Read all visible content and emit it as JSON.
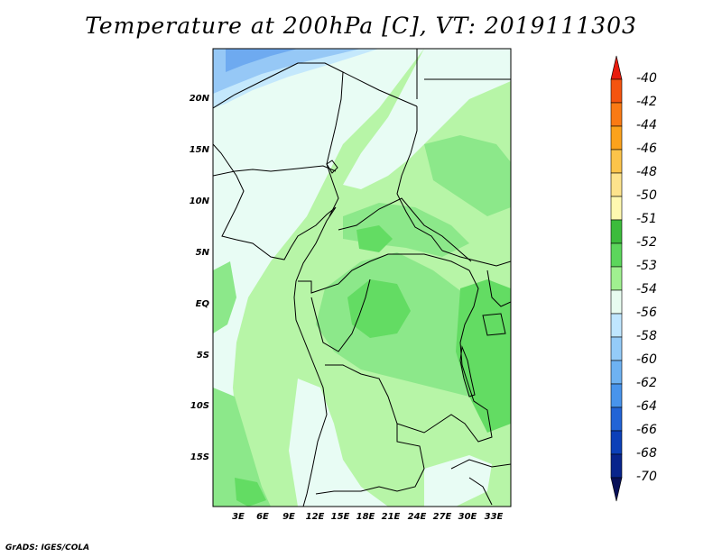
{
  "title": "Temperature at 200hPa [C], VT: 2019111303",
  "footer": "GrADS: IGES/COLA",
  "lat_labels": [
    "20N",
    "15N",
    "10N",
    "5N",
    "EQ",
    "5S",
    "10S",
    "15S"
  ],
  "lon_labels": [
    "3E",
    "6E",
    "9E",
    "12E",
    "15E",
    "18E",
    "21E",
    "24E",
    "27E",
    "30E",
    "33E"
  ],
  "colorbar": {
    "labels": [
      "-40",
      "-42",
      "-44",
      "-46",
      "-48",
      "-50",
      "-51",
      "-52",
      "-53",
      "-54",
      "-56",
      "-58",
      "-60",
      "-62",
      "-64",
      "-66",
      "-68",
      "-70"
    ],
    "colors": [
      "#e81c0e",
      "#f4540f",
      "#fa7a14",
      "#fba21c",
      "#fcc44a",
      "#fde38c",
      "#fff8b0",
      "#3cbc3c",
      "#5cd65c",
      "#a0f090",
      "#e8fcf0",
      "#bfe6ff",
      "#94cbf8",
      "#6eb2f2",
      "#4894ec",
      "#2264d6",
      "#0c40b8",
      "#08248c",
      "#081058"
    ]
  },
  "colors": {
    "background": "#ffffff",
    "map_base": "#b7f5a7",
    "warm_52": "#63dc63",
    "band_53": "#8ce88a",
    "band_54": "#e8fcf4",
    "band_56": "#c4e8fc",
    "band_58": "#96c8f6",
    "band_60": "#6eaaf0",
    "border": "#000000"
  }
}
